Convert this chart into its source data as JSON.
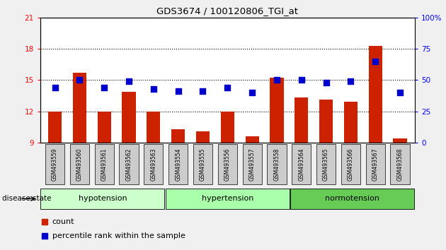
{
  "title": "GDS3674 / 100120806_TGI_at",
  "samples": [
    "GSM493559",
    "GSM493560",
    "GSM493561",
    "GSM493562",
    "GSM493563",
    "GSM493554",
    "GSM493555",
    "GSM493556",
    "GSM493557",
    "GSM493558",
    "GSM493564",
    "GSM493565",
    "GSM493566",
    "GSM493567",
    "GSM493568"
  ],
  "count_values": [
    12.0,
    15.7,
    12.0,
    13.9,
    12.0,
    10.3,
    10.1,
    12.0,
    9.6,
    15.2,
    13.3,
    13.1,
    12.9,
    18.3,
    9.4
  ],
  "percentile_values": [
    44,
    50,
    44,
    49,
    43,
    41,
    41,
    44,
    40,
    50,
    50,
    48,
    49,
    65,
    40
  ],
  "groups": [
    {
      "label": "hypotension",
      "start": 0,
      "end": 5,
      "color": "#ccffcc"
    },
    {
      "label": "hypertension",
      "start": 5,
      "end": 10,
      "color": "#aaffaa"
    },
    {
      "label": "normotension",
      "start": 10,
      "end": 15,
      "color": "#66cc55"
    }
  ],
  "ylim_left": [
    9,
    21
  ],
  "ylim_right": [
    0,
    100
  ],
  "yticks_left": [
    9,
    12,
    15,
    18,
    21
  ],
  "yticks_right": [
    0,
    25,
    50,
    75,
    100
  ],
  "bar_color": "#cc2200",
  "dot_color": "#0000cc",
  "bar_width": 0.55,
  "dot_size": 35,
  "background_color": "#ffffff",
  "disease_state_label": "disease state",
  "legend_count": "count",
  "legend_percentile": "percentile rank within the sample",
  "grid_lines": [
    12,
    15,
    18
  ],
  "fig_bg": "#f0f0f0"
}
